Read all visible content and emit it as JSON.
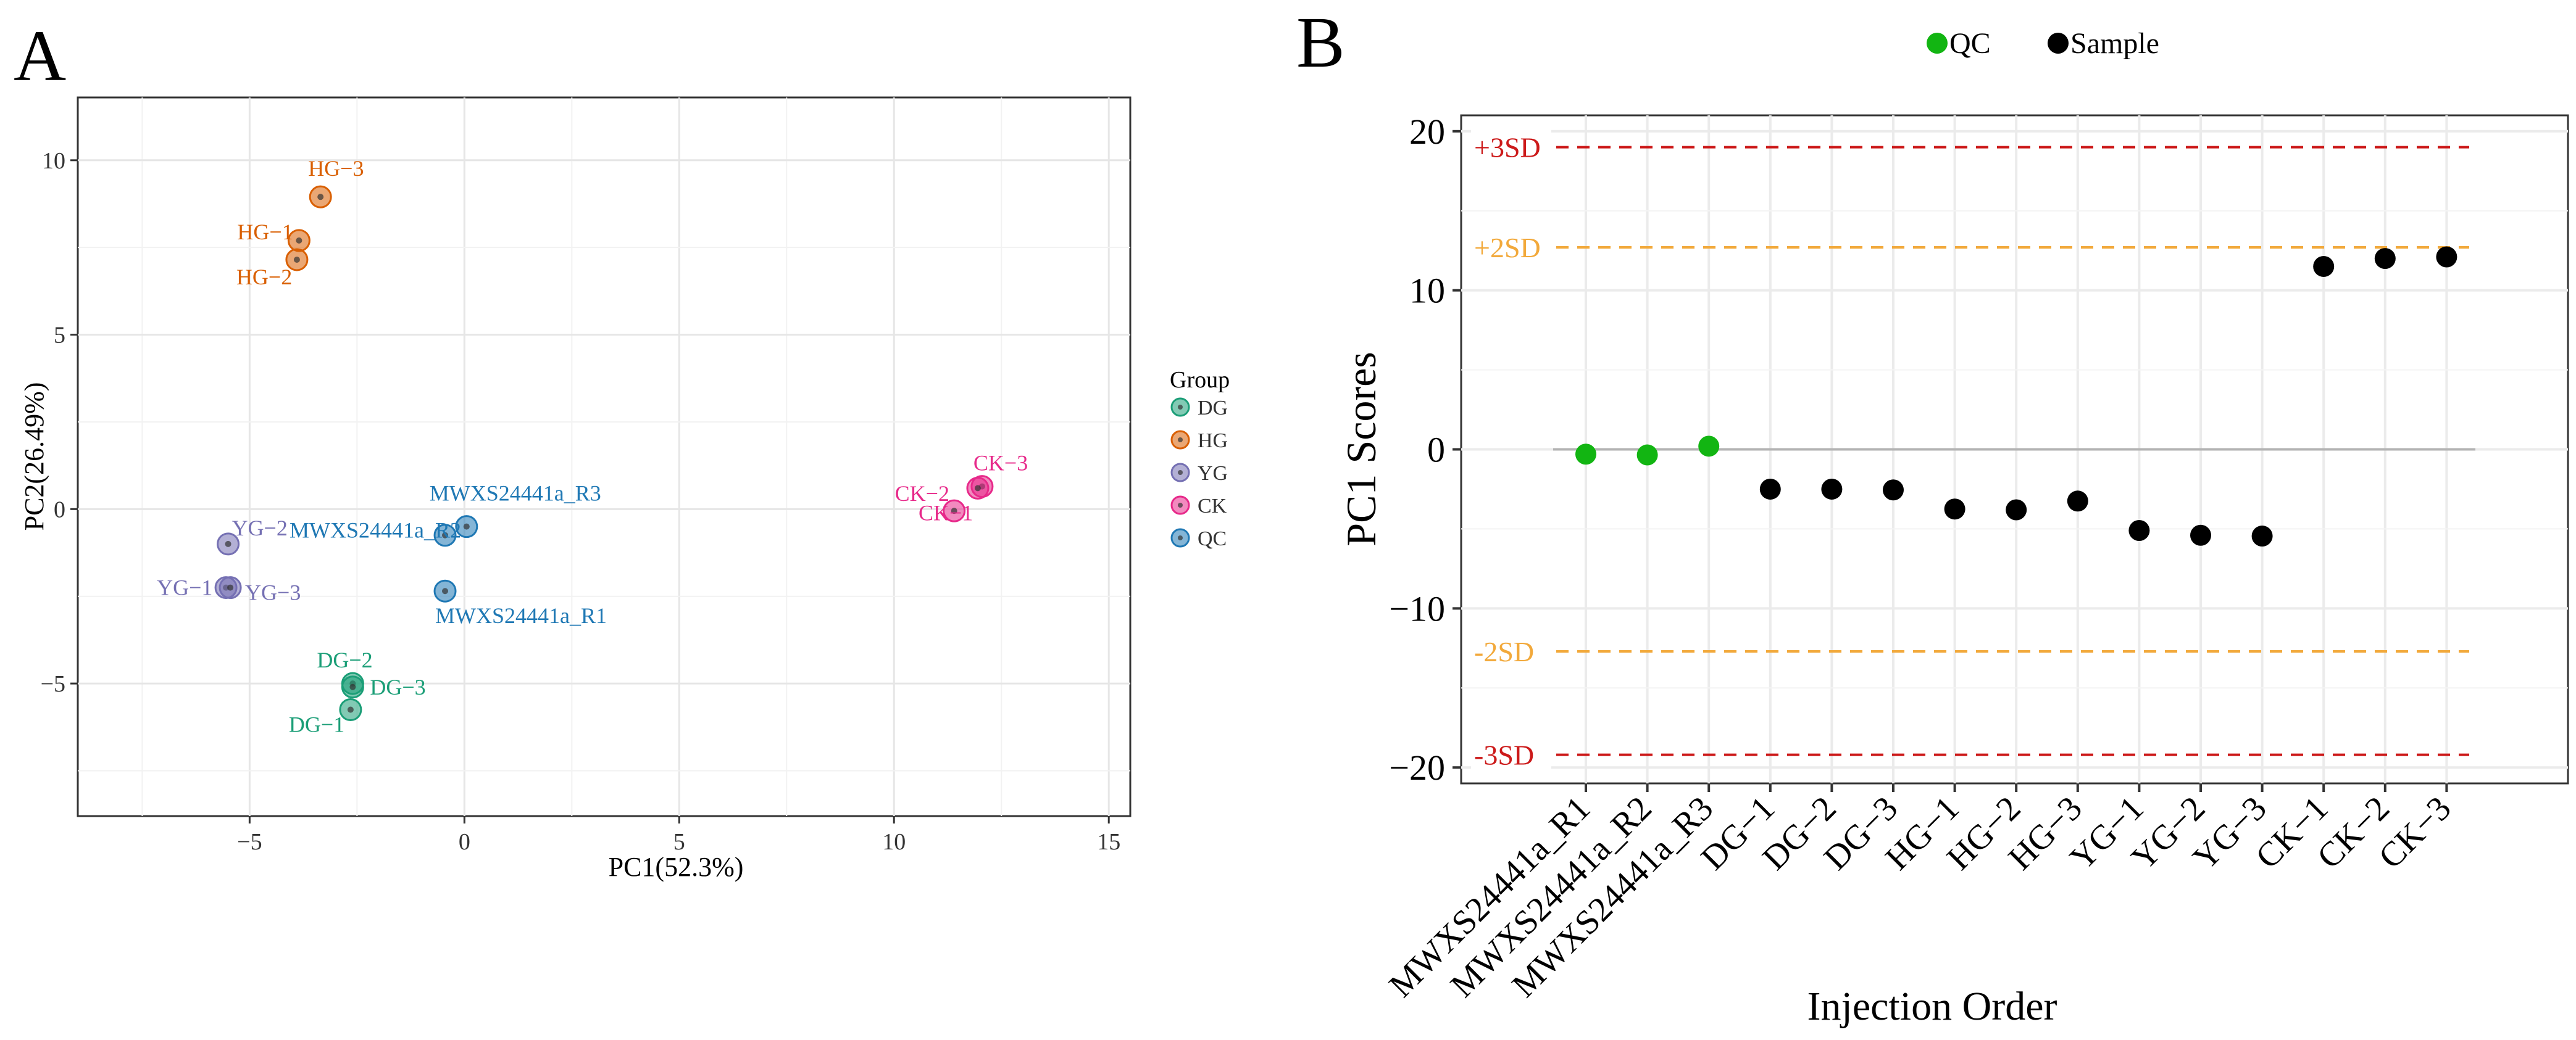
{
  "panels": [
    {
      "letter": "A",
      "chart_data": {
        "type": "scatter",
        "xlabel": "PC1(52.3%)",
        "ylabel": "PC2(26.49%)",
        "xlim": [
          -9,
          15.5
        ],
        "ylim": [
          -8.8,
          11.8
        ],
        "xticks": [
          -5,
          0,
          5,
          10,
          15
        ],
        "xtick_labels": [
          "−5",
          "0",
          "5",
          "10",
          "15"
        ],
        "yticks": [
          -5,
          0,
          5,
          10
        ],
        "ytick_labels": [
          "−5",
          "0",
          "5",
          "10"
        ],
        "grid": true,
        "legend_title": "Group",
        "legend_position": "right",
        "groups": [
          {
            "name": "DG",
            "color": "#1b9e77",
            "points": [
              {
                "label": "DG−2",
                "x": -2.6,
                "y": -5.0
              },
              {
                "label": "DG−3",
                "x": -2.6,
                "y": -5.1
              },
              {
                "label": "DG−1",
                "x": -2.65,
                "y": -5.75
              }
            ]
          },
          {
            "name": "HG",
            "color": "#d95f02",
            "points": [
              {
                "label": "HG−3",
                "x": -3.35,
                "y": 8.95
              },
              {
                "label": "HG−1",
                "x": -3.85,
                "y": 7.7
              },
              {
                "label": "HG−2",
                "x": -3.9,
                "y": 7.15
              }
            ]
          },
          {
            "name": "YG",
            "color": "#7570b3",
            "points": [
              {
                "label": "YG−2",
                "x": -5.5,
                "y": -1.0
              },
              {
                "label": "YG−1",
                "x": -5.55,
                "y": -2.25
              },
              {
                "label": "YG−3",
                "x": -5.45,
                "y": -2.25
              }
            ]
          },
          {
            "name": "CK",
            "color": "#e7298a",
            "points": [
              {
                "label": "CK−2",
                "x": 11.4,
                "y": -0.05
              },
              {
                "label": "CK−3",
                "x": 12.05,
                "y": 0.65
              },
              {
                "label": "CK−1",
                "x": 11.95,
                "y": 0.6
              }
            ]
          },
          {
            "name": "QC",
            "color": "#1f78b4",
            "points": [
              {
                "label": "MWXS24441a_R3",
                "x": 0.05,
                "y": -0.5
              },
              {
                "label": "MWXS24441a_R2",
                "x": -0.45,
                "y": -0.75
              },
              {
                "label": "MWXS24441a_R1",
                "x": -0.45,
                "y": -2.35
              }
            ]
          }
        ]
      }
    },
    {
      "letter": "B",
      "chart_data": {
        "type": "scatter",
        "xlabel": "Injection Order",
        "ylabel": "PC1 Scores",
        "categories": [
          "MWXS24441a_R1",
          "MWXS24441a_R2",
          "MWXS24441a_R3",
          "DG−1",
          "DG−2",
          "DG−3",
          "HG−1",
          "HG−2",
          "HG−3",
          "YG−1",
          "YG−2",
          "YG−3",
          "CK−1",
          "CK−2",
          "CK−3"
        ],
        "ylim": [
          -21,
          21
        ],
        "yticks": [
          -20,
          -10,
          0,
          10,
          20
        ],
        "ytick_labels": [
          "−20",
          "−10",
          "0",
          "10",
          "20"
        ],
        "grid": true,
        "legend_position": "top",
        "series": [
          {
            "name": "QC",
            "color": "#12b512",
            "indices": [
              0,
              1,
              2
            ],
            "values": [
              -0.3,
              -0.35,
              0.2
            ]
          },
          {
            "name": "Sample",
            "color": "#000000",
            "indices": [
              3,
              4,
              5,
              6,
              7,
              8,
              9,
              10,
              11,
              12,
              13,
              14
            ],
            "values": [
              -2.5,
              -2.5,
              -2.55,
              -3.75,
              -3.8,
              -3.25,
              -5.1,
              -5.4,
              -5.45,
              11.5,
              12.0,
              12.1
            ]
          }
        ],
        "reference_lines": [
          {
            "label": "+3SD",
            "value": 19.0,
            "color": "#cc1a1a"
          },
          {
            "label": "+2SD",
            "value": 12.7,
            "color": "#f2a93b"
          },
          {
            "label": "-2SD",
            "value": -12.7,
            "color": "#f2a93b"
          },
          {
            "label": "-3SD",
            "value": -19.2,
            "color": "#cc1a1a"
          }
        ],
        "baseline": 0
      }
    }
  ]
}
